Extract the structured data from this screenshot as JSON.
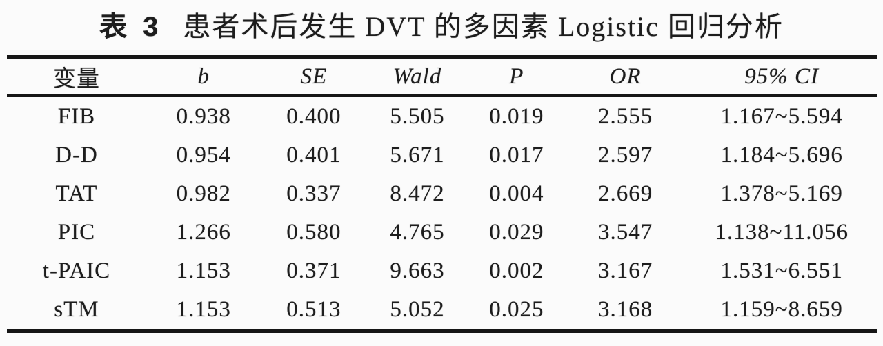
{
  "title": {
    "prefix": "表 3",
    "text": "患者术后发生 DVT 的多因素 Logistic 回归分析"
  },
  "table": {
    "columns": [
      {
        "label": "变量"
      },
      {
        "label": "b"
      },
      {
        "label": "SE"
      },
      {
        "label": "Wald"
      },
      {
        "label": "P"
      },
      {
        "label": "OR"
      },
      {
        "label": "95% CI"
      }
    ],
    "rows": [
      {
        "variable": "FIB",
        "b": "0.938",
        "se": "0.400",
        "wald": "5.505",
        "p": "0.019",
        "or": "2.555",
        "ci": "1.167~5.594"
      },
      {
        "variable": "D-D",
        "b": "0.954",
        "se": "0.401",
        "wald": "5.671",
        "p": "0.017",
        "or": "2.597",
        "ci": "1.184~5.696"
      },
      {
        "variable": "TAT",
        "b": "0.982",
        "se": "0.337",
        "wald": "8.472",
        "p": "0.004",
        "or": "2.669",
        "ci": "1.378~5.169"
      },
      {
        "variable": "PIC",
        "b": "1.266",
        "se": "0.580",
        "wald": "4.765",
        "p": "0.029",
        "or": "3.547",
        "ci": "1.138~11.056"
      },
      {
        "variable": "t-PAIC",
        "b": "1.153",
        "se": "0.371",
        "wald": "9.663",
        "p": "0.002",
        "or": "3.167",
        "ci": "1.531~6.551"
      },
      {
        "variable": "sTM",
        "b": "1.153",
        "se": "0.513",
        "wald": "5.052",
        "p": "0.025",
        "or": "3.168",
        "ci": "1.159~8.659"
      }
    ]
  },
  "colors": {
    "background": "#fbfbfb",
    "text": "#1d1d1d",
    "rule": "#161616"
  }
}
